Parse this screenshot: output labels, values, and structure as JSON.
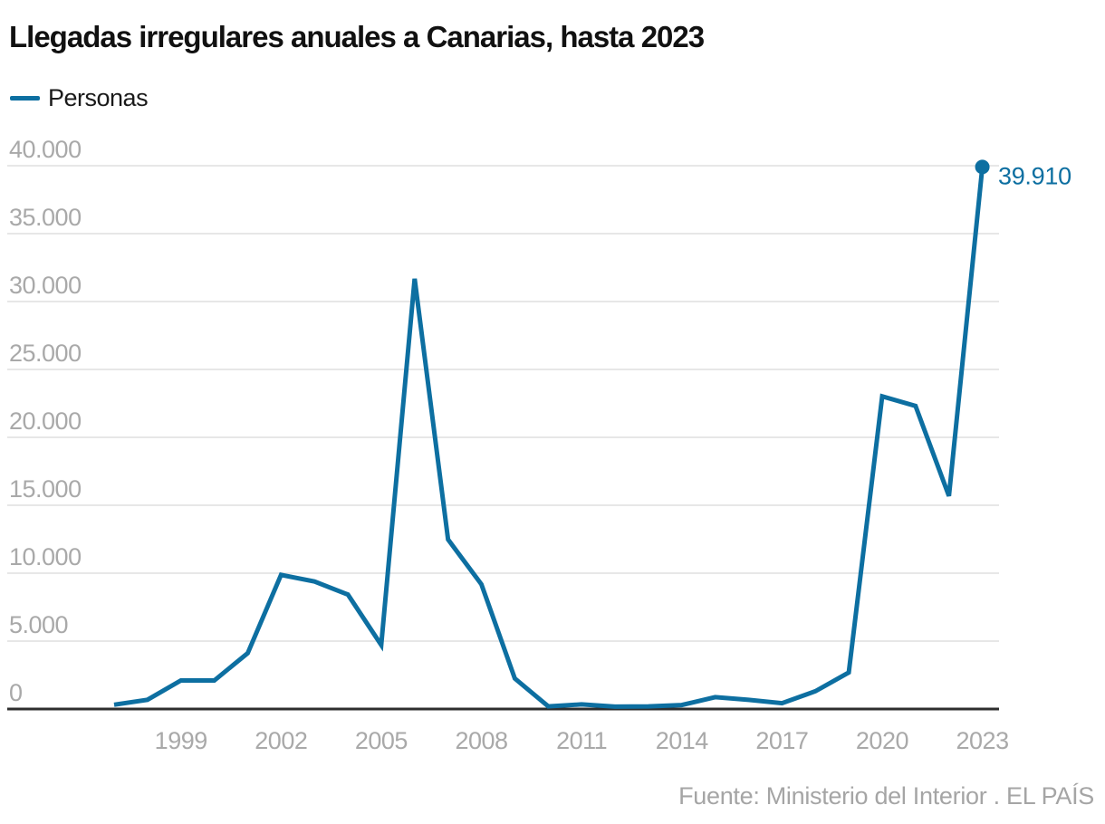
{
  "header": {
    "title": "Llegadas irregulares anuales a Canarias, hasta 2023"
  },
  "legend": {
    "label": "Personas"
  },
  "footer": {
    "source": "Fuente: Ministerio del Interior",
    "separator": " . ",
    "credit": "EL PAÍS"
  },
  "colors": {
    "line": "#0d6fa1",
    "grid": "#e7e7e7",
    "axis": "#2e2e2e",
    "tick_label": "#a9a9a9",
    "title": "#111111",
    "legend_text": "#1a1a1a",
    "footer_text": "#a5a5a5",
    "background": "#ffffff"
  },
  "chart_data": {
    "type": "line",
    "title": "Llegadas irregulares anuales a Canarias, hasta 2023",
    "xlabel": "",
    "ylabel": "",
    "grid": "horizontal",
    "legend_position": "top-left",
    "xlim": [
      1993.8,
      2023.5
    ],
    "ylim": [
      0,
      40000
    ],
    "x_ticks": [
      1999,
      2002,
      2005,
      2008,
      2011,
      2014,
      2017,
      2020,
      2023
    ],
    "x_tick_labels": [
      "1999",
      "2002",
      "2005",
      "2008",
      "2011",
      "2014",
      "2017",
      "2020",
      "2023"
    ],
    "y_ticks": [
      0,
      5000,
      10000,
      15000,
      20000,
      25000,
      30000,
      35000,
      40000
    ],
    "y_tick_labels": [
      "0",
      "5.000",
      "10.000",
      "15.000",
      "20.000",
      "25.000",
      "30.000",
      "35.000",
      "40.000"
    ],
    "end_label": "39.910",
    "series": [
      {
        "name": "Personas",
        "color": "#0d6fa1",
        "x": [
          1997,
          1998,
          1999,
          2000,
          2001,
          2002,
          2003,
          2004,
          2005,
          2006,
          2007,
          2008,
          2009,
          2010,
          2011,
          2012,
          2013,
          2014,
          2015,
          2016,
          2017,
          2018,
          2019,
          2020,
          2021,
          2022,
          2023
        ],
        "values": [
          312,
          681,
          2100,
          2100,
          4112,
          9875,
          9388,
          8426,
          4715,
          31678,
          12478,
          9181,
          2246,
          196,
          340,
          173,
          196,
          296,
          875,
          671,
          425,
          1307,
          2687,
          23023,
          22316,
          15682,
          39910
        ]
      }
    ]
  }
}
